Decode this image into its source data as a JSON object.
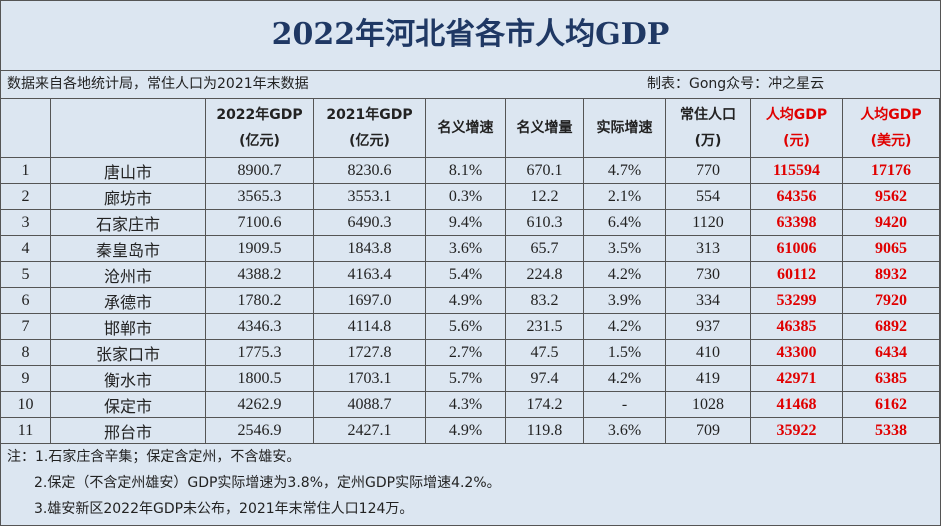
{
  "title": "2022年河北省各市人均GDP",
  "source": "数据来自各地统计局，常住人口为2021年末数据",
  "credit": "制表：Gong众号：冲之星云",
  "table": {
    "header": [
      [
        "2022年GDP",
        "(亿元)"
      ],
      [
        "2021年GDP",
        "(亿元)"
      ],
      [
        "名义增速"
      ],
      [
        "名义增量"
      ],
      [
        "实际增速"
      ],
      [
        "常住人口",
        "(万)"
      ],
      [
        "人均GDP",
        "(元)"
      ],
      [
        "人均GDP",
        "(美元)"
      ]
    ],
    "rows": [
      [
        "1",
        "唐山市",
        "8900.7",
        "8230.6",
        "8.1%",
        "670.1",
        "4.7%",
        "770",
        "115594",
        "17176"
      ],
      [
        "2",
        "廊坊市",
        "3565.3",
        "3553.1",
        "0.3%",
        "12.2",
        "2.1%",
        "554",
        "64356",
        "9562"
      ],
      [
        "3",
        "石家庄市",
        "7100.6",
        "6490.3",
        "9.4%",
        "610.3",
        "6.4%",
        "1120",
        "63398",
        "9420"
      ],
      [
        "4",
        "秦皇岛市",
        "1909.5",
        "1843.8",
        "3.6%",
        "65.7",
        "3.5%",
        "313",
        "61006",
        "9065"
      ],
      [
        "5",
        "沧州市",
        "4388.2",
        "4163.4",
        "5.4%",
        "224.8",
        "4.2%",
        "730",
        "60112",
        "8932"
      ],
      [
        "6",
        "承德市",
        "1780.2",
        "1697.0",
        "4.9%",
        "83.2",
        "3.9%",
        "334",
        "53299",
        "7920"
      ],
      [
        "7",
        "邯郸市",
        "4346.3",
        "4114.8",
        "5.6%",
        "231.5",
        "4.2%",
        "937",
        "46385",
        "6892"
      ],
      [
        "8",
        "张家口市",
        "1775.3",
        "1727.8",
        "2.7%",
        "47.5",
        "1.5%",
        "410",
        "43300",
        "6434"
      ],
      [
        "9",
        "衡水市",
        "1800.5",
        "1703.1",
        "5.7%",
        "97.4",
        "4.2%",
        "419",
        "42971",
        "6385"
      ],
      [
        "10",
        "保定市",
        "4262.9",
        "4088.7",
        "4.3%",
        "174.2",
        "-",
        "1028",
        "41468",
        "6162"
      ],
      [
        "11",
        "邢台市",
        "2546.9",
        "2427.1",
        "4.9%",
        "119.8",
        "3.6%",
        "709",
        "35922",
        "5338"
      ]
    ]
  },
  "notes": [
    "注：1.石家庄含辛集；保定含定州，不含雄安。",
    "2.保定（不含定州雄安）GDP实际增速为3.8%，定州GDP实际增速4.2%。",
    "3.雄安新区2022年GDP未公布，2021年末常住人口124万。"
  ]
}
